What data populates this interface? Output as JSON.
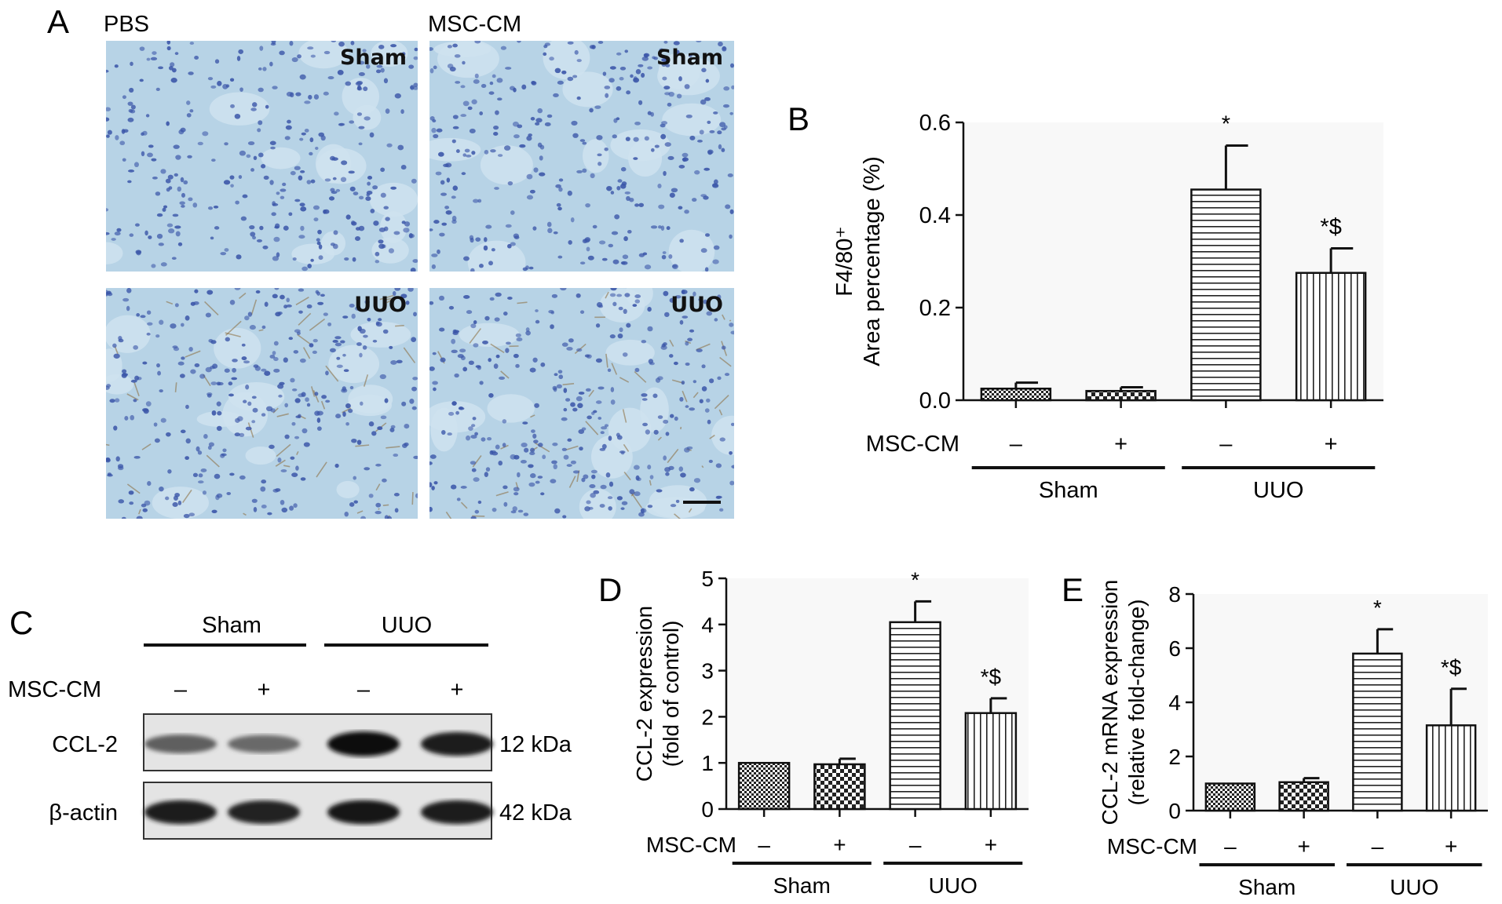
{
  "panels": {
    "A": {
      "letter": "A",
      "col_labels": [
        "PBS",
        "MSC-CM"
      ],
      "tiles": [
        {
          "label": "Sham",
          "stain": "sham"
        },
        {
          "label": "Sham",
          "stain": "sham"
        },
        {
          "label": "UUO",
          "stain": "uuo"
        },
        {
          "label": "UUO",
          "stain": "uuo"
        }
      ]
    },
    "B": {
      "letter": "B"
    },
    "C": {
      "letter": "C",
      "group_labels": [
        "Sham",
        "UUO"
      ],
      "treatment_label": "MSC-CM",
      "treatment_signs": [
        "–",
        "+",
        "–",
        "+"
      ],
      "blots": [
        {
          "name": "CCL-2",
          "size": "12 kDa"
        },
        {
          "name": "β-actin",
          "size": "42 kDa"
        }
      ]
    },
    "D": {
      "letter": "D"
    },
    "E": {
      "letter": "E"
    }
  },
  "colors": {
    "tissue_bg": "#b7d3e6",
    "nuclei": "#3a55a8",
    "brown_stain": "#8a6a3a",
    "bar_fill": "#ffffff",
    "stroke": "#111111"
  },
  "chart_data": [
    {
      "panel": "B",
      "type": "bar",
      "ylabel_lines": [
        "F4/80⁺",
        "Area percentage (%)"
      ],
      "ylim": [
        0,
        0.6
      ],
      "yticks": [
        "0.0",
        "0.2",
        "0.4",
        "0.6"
      ],
      "treatment_label": "MSC-CM",
      "categories": [
        "–",
        "+",
        "–",
        "+"
      ],
      "groups": [
        {
          "name": "Sham",
          "span": [
            0,
            1
          ]
        },
        {
          "name": "UUO",
          "span": [
            2,
            3
          ]
        }
      ],
      "values": [
        0.025,
        0.02,
        0.455,
        0.275
      ],
      "errors": [
        0.013,
        0.008,
        0.095,
        0.053
      ],
      "patterns": [
        "dense-check",
        "check",
        "hstripe",
        "vstripe"
      ],
      "annotations": [
        "",
        "",
        "*",
        "*$"
      ]
    },
    {
      "panel": "D",
      "type": "bar",
      "ylabel_lines": [
        "CCL-2 expression",
        "(fold of control)"
      ],
      "ylim": [
        0,
        5
      ],
      "yticks": [
        "0",
        "1",
        "2",
        "3",
        "4",
        "5"
      ],
      "treatment_label": "MSC-CM",
      "categories": [
        "–",
        "+",
        "–",
        "+"
      ],
      "groups": [
        {
          "name": "Sham",
          "span": [
            0,
            1
          ]
        },
        {
          "name": "UUO",
          "span": [
            2,
            3
          ]
        }
      ],
      "values": [
        1.0,
        0.97,
        4.05,
        2.08
      ],
      "errors": [
        0,
        0.12,
        0.45,
        0.32
      ],
      "patterns": [
        "dense-check",
        "check",
        "hstripe",
        "vstripe"
      ],
      "annotations": [
        "",
        "",
        "*",
        "*$"
      ]
    },
    {
      "panel": "E",
      "type": "bar",
      "ylabel_lines": [
        "CCL-2 mRNA expression",
        "(relative fold-change)"
      ],
      "ylim": [
        0,
        8
      ],
      "yticks": [
        "0",
        "2",
        "4",
        "6",
        "8"
      ],
      "treatment_label": "MSC-CM",
      "categories": [
        "–",
        "+",
        "–",
        "+"
      ],
      "groups": [
        {
          "name": "Sham",
          "span": [
            0,
            1
          ]
        },
        {
          "name": "UUO",
          "span": [
            2,
            3
          ]
        }
      ],
      "values": [
        1.0,
        1.05,
        5.8,
        3.15
      ],
      "errors": [
        0,
        0.15,
        0.9,
        1.35
      ],
      "patterns": [
        "dense-check",
        "check",
        "hstripe",
        "vstripe"
      ],
      "annotations": [
        "",
        "",
        "*",
        "*$"
      ]
    }
  ]
}
